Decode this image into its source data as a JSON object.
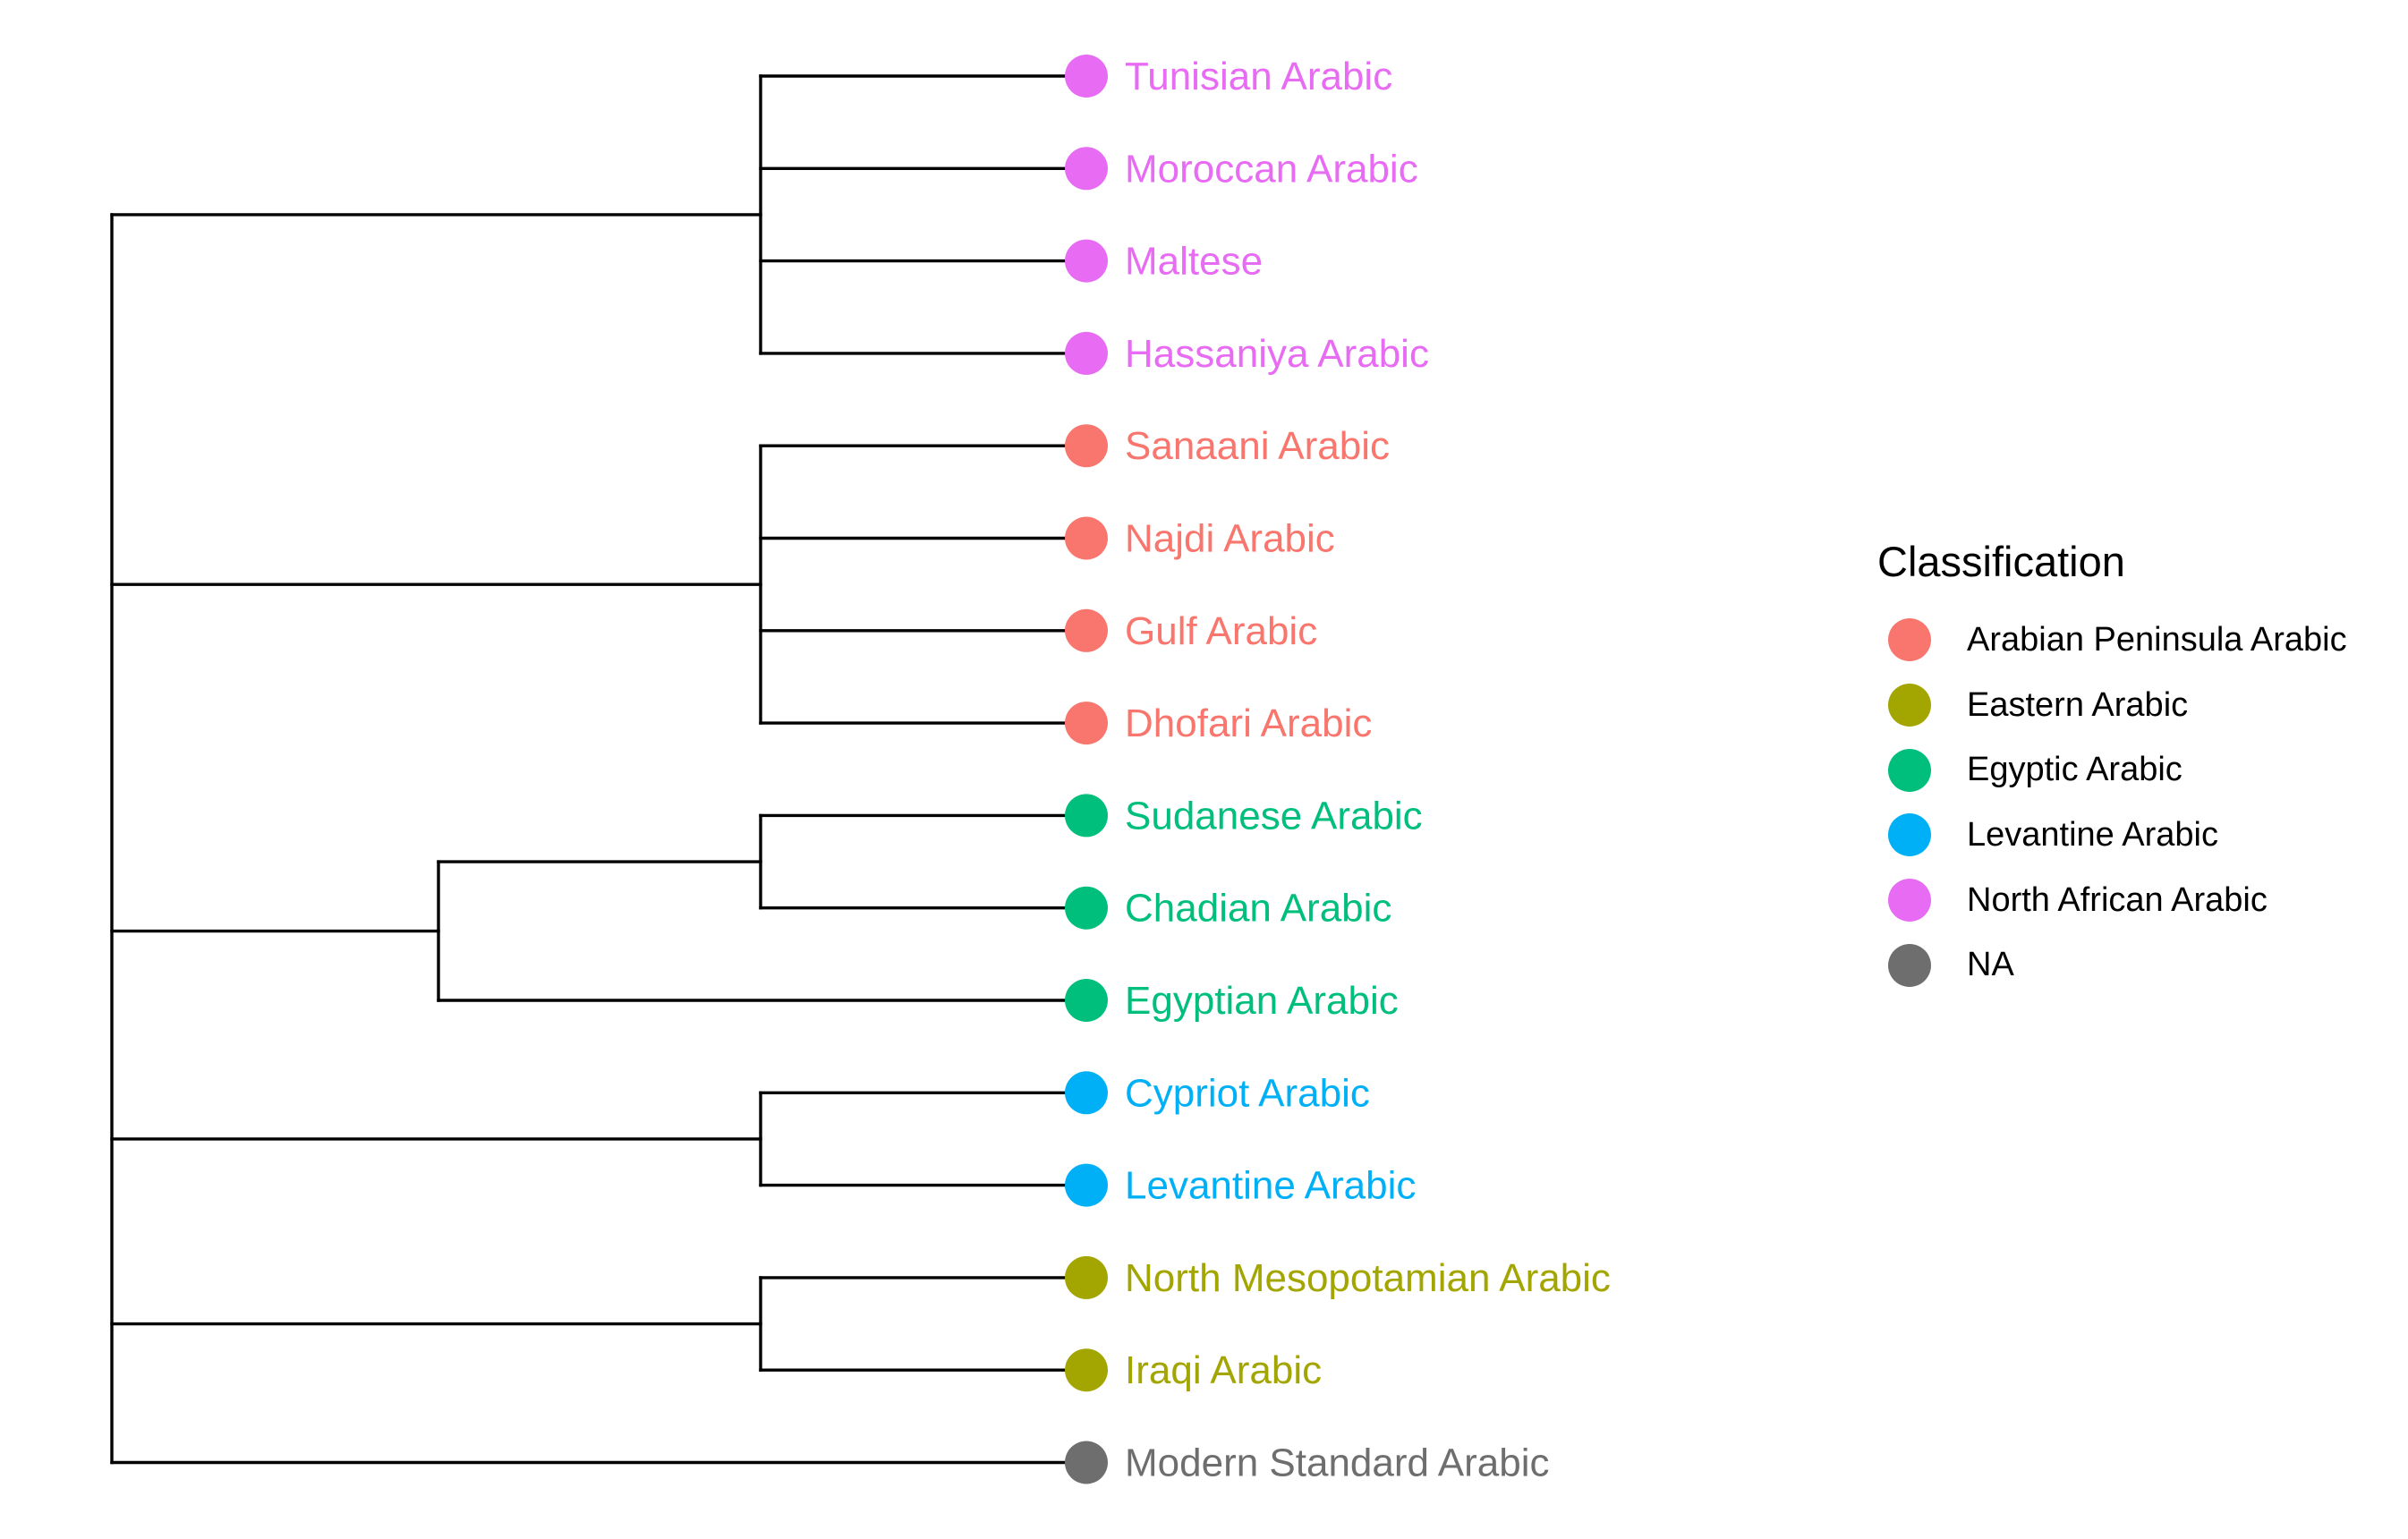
{
  "legend": {
    "title": "Classification",
    "items": [
      {
        "label": "Arabian Peninsula Arabic",
        "color": "#F8766D"
      },
      {
        "label": "Eastern Arabic",
        "color": "#A3A500"
      },
      {
        "label": "Egyptic Arabic",
        "color": "#00BF7D"
      },
      {
        "label": "Levantine Arabic",
        "color": "#00B0F6"
      },
      {
        "label": "North African Arabic",
        "color": "#E76BF3"
      },
      {
        "label": "NA",
        "color": "#6E6E6E"
      }
    ]
  },
  "tips": [
    {
      "label": "Tunisian Arabic",
      "group": "North African Arabic"
    },
    {
      "label": "Moroccan Arabic",
      "group": "North African Arabic"
    },
    {
      "label": "Maltese",
      "group": "North African Arabic"
    },
    {
      "label": "Hassaniya Arabic",
      "group": "North African Arabic"
    },
    {
      "label": "Sanaani Arabic",
      "group": "Arabian Peninsula Arabic"
    },
    {
      "label": "Najdi Arabic",
      "group": "Arabian Peninsula Arabic"
    },
    {
      "label": "Gulf Arabic",
      "group": "Arabian Peninsula Arabic"
    },
    {
      "label": "Dhofari Arabic",
      "group": "Arabian Peninsula Arabic"
    },
    {
      "label": "Sudanese Arabic",
      "group": "Egyptic Arabic"
    },
    {
      "label": "Chadian Arabic",
      "group": "Egyptic Arabic"
    },
    {
      "label": "Egyptian Arabic",
      "group": "Egyptic Arabic"
    },
    {
      "label": "Cypriot Arabic",
      "group": "Levantine Arabic"
    },
    {
      "label": "Levantine Arabic",
      "group": "Levantine Arabic"
    },
    {
      "label": "North Mesopotamian Arabic",
      "group": "Eastern Arabic"
    },
    {
      "label": "Iraqi Arabic",
      "group": "Eastern Arabic"
    },
    {
      "label": "Modern Standard Arabic",
      "group": "NA"
    }
  ],
  "tree": {
    "children": [
      {
        "children": [
          {
            "tip": 0
          },
          {
            "tip": 1
          },
          {
            "tip": 2
          },
          {
            "tip": 3
          }
        ]
      },
      {
        "children": [
          {
            "tip": 4
          },
          {
            "tip": 5
          },
          {
            "tip": 6
          },
          {
            "tip": 7
          }
        ]
      },
      {
        "children": [
          {
            "children": [
              {
                "tip": 8
              },
              {
                "tip": 9
              }
            ]
          },
          {
            "tip": 10
          }
        ]
      },
      {
        "children": [
          {
            "tip": 11
          },
          {
            "tip": 12
          }
        ]
      },
      {
        "children": [
          {
            "tip": 13
          },
          {
            "tip": 14
          }
        ]
      },
      {
        "tip": 15
      }
    ]
  }
}
